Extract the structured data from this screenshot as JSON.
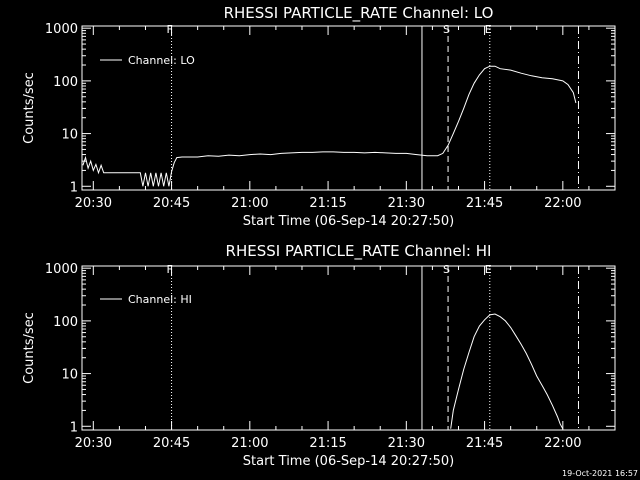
{
  "footer": {
    "stamp": "19-Oct-2021 16:57"
  },
  "chart_data": [
    {
      "type": "line",
      "title": "RHESSI PARTICLE_RATE Channel: LO",
      "xlabel": "Start Time (06-Sep-14 20:27:50)",
      "ylabel": "Counts/sec",
      "y_scale": "log",
      "ylim": [
        0.85,
        1100
      ],
      "xlim": [
        "20:27:50",
        "22:10:00"
      ],
      "x_ticks": [
        "20:30",
        "20:45",
        "21:00",
        "21:15",
        "21:30",
        "21:45",
        "22:00"
      ],
      "y_ticks": [
        "1",
        "10",
        "100",
        "1000"
      ],
      "legend": {
        "position": "top-left",
        "entries": [
          "Channel: LO"
        ]
      },
      "markers": [
        {
          "label": "F",
          "x": "20:45:00",
          "style": "dotted"
        },
        {
          "label": "",
          "x": "21:33:00",
          "style": "solid"
        },
        {
          "label": "S",
          "x": "21:38:00",
          "style": "dashed"
        },
        {
          "label": "E",
          "x": "21:46:00",
          "style": "dotted"
        },
        {
          "label": "",
          "x": "22:03:00",
          "style": "dash-dot"
        }
      ],
      "series": [
        {
          "name": "Channel: LO",
          "x": [
            "20:28:00",
            "20:28:30",
            "20:29:00",
            "20:29:30",
            "20:30:00",
            "20:30:30",
            "20:31:00",
            "20:31:30",
            "20:32:00",
            "20:33:00",
            "20:34:00",
            "20:35:00",
            "20:36:00",
            "20:37:00",
            "20:38:00",
            "20:39:00",
            "20:39:30",
            "20:40:00",
            "20:40:30",
            "20:41:00",
            "20:41:30",
            "20:42:00",
            "20:42:30",
            "20:43:00",
            "20:43:30",
            "20:44:00",
            "20:44:30",
            "20:45:00",
            "20:45:30",
            "20:46:00",
            "20:47:00",
            "20:48:00",
            "20:50:00",
            "20:52:00",
            "20:54:00",
            "20:56:00",
            "20:58:00",
            "21:00:00",
            "21:02:00",
            "21:04:00",
            "21:06:00",
            "21:08:00",
            "21:10:00",
            "21:12:00",
            "21:14:00",
            "21:16:00",
            "21:18:00",
            "21:20:00",
            "21:22:00",
            "21:24:00",
            "21:26:00",
            "21:28:00",
            "21:30:00",
            "21:32:00",
            "21:34:00",
            "21:36:00",
            "21:37:00",
            "21:38:00",
            "21:39:00",
            "21:40:00",
            "21:41:00",
            "21:42:00",
            "21:43:00",
            "21:44:00",
            "21:45:00",
            "21:46:00",
            "21:47:00",
            "21:48:00",
            "21:50:00",
            "21:52:00",
            "21:54:00",
            "21:56:00",
            "21:58:00",
            "22:00:00",
            "22:01:00",
            "22:02:00",
            "22:02:30"
          ],
          "values": [
            2.5,
            3.5,
            2.2,
            3.0,
            2.0,
            2.6,
            1.8,
            2.5,
            1.8,
            1.8,
            1.8,
            1.8,
            1.8,
            1.8,
            1.8,
            1.8,
            1.0,
            1.8,
            1.0,
            1.8,
            1.0,
            1.8,
            1.0,
            1.8,
            1.0,
            1.8,
            1.0,
            1.9,
            2.8,
            3.5,
            3.6,
            3.6,
            3.6,
            3.8,
            3.7,
            3.9,
            3.8,
            4.0,
            4.1,
            4.0,
            4.2,
            4.3,
            4.4,
            4.4,
            4.5,
            4.5,
            4.4,
            4.4,
            4.3,
            4.4,
            4.3,
            4.2,
            4.2,
            4.0,
            3.8,
            3.8,
            4.2,
            6.0,
            10,
            17,
            30,
            55,
            90,
            130,
            170,
            190,
            190,
            170,
            160,
            140,
            125,
            115,
            110,
            100,
            85,
            60,
            38
          ]
        }
      ]
    },
    {
      "type": "line",
      "title": "RHESSI PARTICLE_RATE Channel: HI",
      "xlabel": "Start Time (06-Sep-14 20:27:50)",
      "ylabel": "Counts/sec",
      "y_scale": "log",
      "ylim": [
        0.85,
        1100
      ],
      "xlim": [
        "20:27:50",
        "22:10:00"
      ],
      "x_ticks": [
        "20:30",
        "20:45",
        "21:00",
        "21:15",
        "21:30",
        "21:45",
        "22:00"
      ],
      "y_ticks": [
        "1",
        "10",
        "100",
        "1000"
      ],
      "legend": {
        "position": "top-left",
        "entries": [
          "Channel: HI"
        ]
      },
      "markers": [
        {
          "label": "F",
          "x": "20:45:00",
          "style": "dotted"
        },
        {
          "label": "",
          "x": "21:33:00",
          "style": "solid"
        },
        {
          "label": "S",
          "x": "21:38:00",
          "style": "dashed"
        },
        {
          "label": "E",
          "x": "21:46:00",
          "style": "dotted"
        },
        {
          "label": "",
          "x": "22:03:00",
          "style": "dash-dot"
        }
      ],
      "series": [
        {
          "name": "Channel: HI",
          "x": [
            "21:38:30",
            "21:39:00",
            "21:40:00",
            "21:41:00",
            "21:42:00",
            "21:43:00",
            "21:44:00",
            "21:45:00",
            "21:46:00",
            "21:47:00",
            "21:48:00",
            "21:49:00",
            "21:50:00",
            "21:51:00",
            "21:52:00",
            "21:53:00",
            "21:54:00",
            "21:55:00",
            "21:56:00",
            "21:57:00",
            "21:58:00",
            "21:59:00",
            "21:59:30",
            "22:00:00"
          ],
          "values": [
            0.9,
            2.0,
            5.0,
            12,
            25,
            50,
            80,
            105,
            130,
            135,
            120,
            100,
            75,
            52,
            36,
            24,
            15,
            9,
            6,
            4,
            2.5,
            1.5,
            1.1,
            0.9
          ]
        }
      ]
    }
  ]
}
